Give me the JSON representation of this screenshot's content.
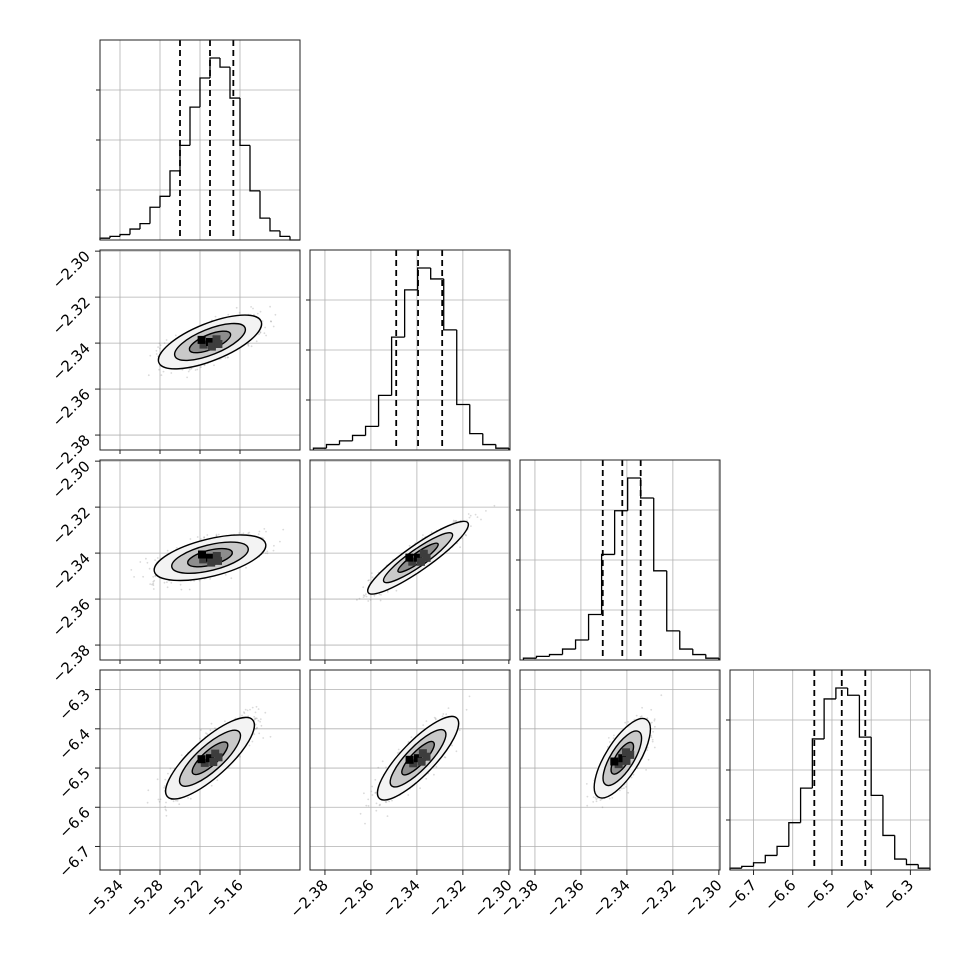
{
  "chart_data": {
    "type": "corner",
    "parameters": 4,
    "grid": true,
    "diagonal": [
      {
        "type": "histogram",
        "bin_range": [
          -5.37,
          -5.07
        ],
        "counts": [
          1,
          2,
          3,
          6,
          9,
          18,
          24,
          38,
          52,
          73,
          89,
          100,
          95,
          78,
          52,
          27,
          12,
          5,
          2,
          0
        ],
        "quantiles": [
          -5.25,
          -5.205,
          -5.17
        ]
      },
      {
        "type": "histogram",
        "bin_range": [
          -2.385,
          -2.3
        ],
        "counts": [
          1,
          3,
          5,
          8,
          13,
          30,
          62,
          88,
          100,
          94,
          66,
          25,
          9,
          3,
          1
        ],
        "quantiles": [
          -2.349,
          -2.3395,
          -2.329
        ]
      },
      {
        "type": "histogram",
        "bin_range": [
          -2.385,
          -2.3
        ],
        "counts": [
          1,
          2,
          3,
          6,
          11,
          25,
          58,
          82,
          100,
          89,
          49,
          16,
          6,
          3,
          1
        ],
        "quantiles": [
          -2.3505,
          -2.342,
          -2.334
        ]
      },
      {
        "type": "histogram",
        "bin_range": [
          -6.76,
          -6.25
        ],
        "counts": [
          1,
          2,
          4,
          8,
          13,
          26,
          45,
          72,
          94,
          100,
          96,
          73,
          41,
          19,
          6,
          3,
          1
        ],
        "quantiles": [
          -6.545,
          -6.475,
          -6.415
        ]
      }
    ],
    "pairs": [
      {
        "row": 1,
        "col": 0,
        "center": [
          -5.205,
          -2.3395
        ],
        "axis_rotation_deg": -22,
        "semi_axes": [
          0.075,
          0.006
        ]
      },
      {
        "row": 2,
        "col": 0,
        "center": [
          -5.205,
          -2.342
        ],
        "axis_rotation_deg": -14,
        "semi_axes": [
          0.078,
          0.006
        ]
      },
      {
        "row": 2,
        "col": 1,
        "center": [
          -2.3395,
          -2.342
        ],
        "axis_rotation_deg": -35,
        "semi_axes": [
          0.024,
          0.003
        ]
      },
      {
        "row": 3,
        "col": 0,
        "center": [
          -5.205,
          -6.475
        ],
        "axis_rotation_deg": -42,
        "semi_axes": [
          0.078,
          0.035
        ]
      },
      {
        "row": 3,
        "col": 1,
        "center": [
          -2.3395,
          -6.475
        ],
        "axis_rotation_deg": -46,
        "semi_axes": [
          0.022,
          0.03
        ]
      },
      {
        "row": 3,
        "col": 2,
        "center": [
          -2.342,
          -6.475
        ],
        "axis_rotation_deg": -58,
        "semi_axes": [
          0.018,
          0.03
        ]
      }
    ],
    "axes": [
      {
        "range": [
          -5.37,
          -5.07
        ],
        "ticks": [
          -5.34,
          -5.28,
          -5.22,
          -5.16
        ],
        "tick_labels": [
          "−5.34",
          "−5.28",
          "−5.22",
          "−5.16"
        ]
      },
      {
        "range": [
          -2.3865,
          -2.2995
        ],
        "ticks": [
          -2.38,
          -2.36,
          -2.34,
          -2.32,
          -2.3
        ],
        "tick_labels": [
          "−2.38",
          "−2.36",
          "−2.34",
          "−2.32",
          "−2.30"
        ]
      },
      {
        "range": [
          -2.3865,
          -2.2995
        ],
        "ticks": [
          -2.38,
          -2.36,
          -2.34,
          -2.32,
          -2.3
        ],
        "tick_labels": [
          "−2.38",
          "−2.36",
          "−2.34",
          "−2.32",
          "−2.30"
        ]
      },
      {
        "range": [
          -6.76,
          -6.25
        ],
        "ticks": [
          -6.7,
          -6.6,
          -6.5,
          -6.4,
          -6.3
        ],
        "tick_labels": [
          "−6.7",
          "−6.6",
          "−6.5",
          "−6.4",
          "−6.3"
        ]
      }
    ],
    "labels": {
      "title": "",
      "xlabels": [
        "",
        "",
        "",
        ""
      ],
      "ylabels": [
        "",
        "",
        "",
        ""
      ]
    }
  }
}
